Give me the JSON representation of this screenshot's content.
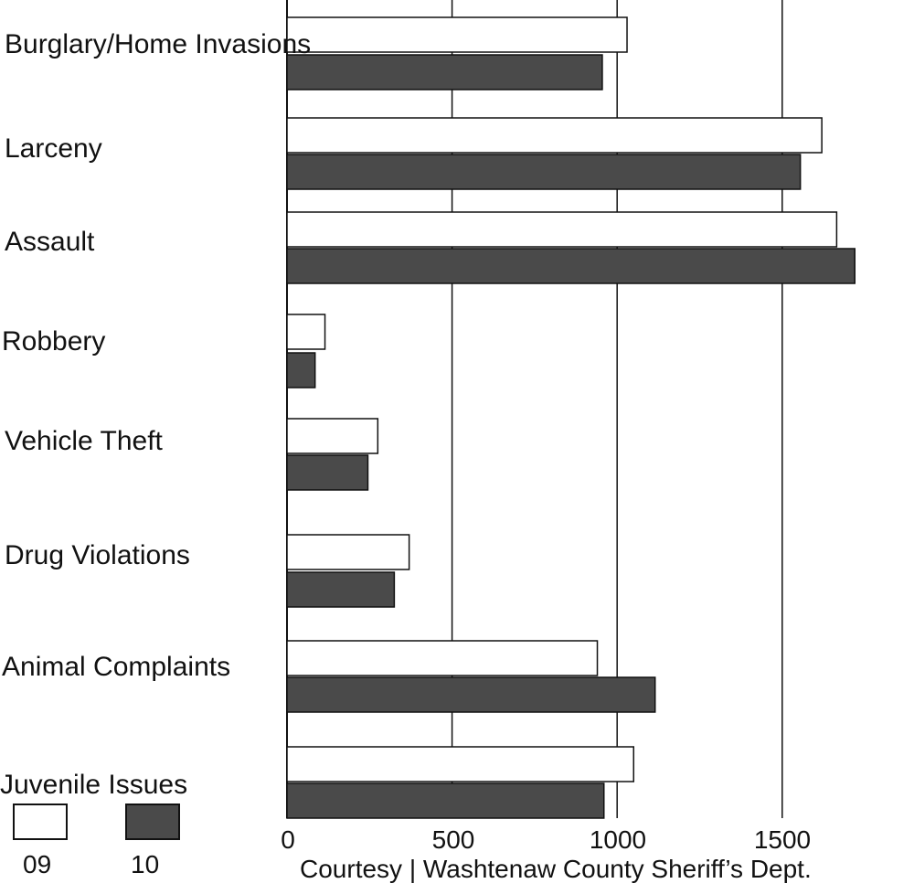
{
  "chart_data": {
    "type": "bar",
    "orientation": "horizontal",
    "categories": [
      "Burglary/Home Invasions",
      "Larceny",
      "Assault",
      "Robbery",
      "Vehicle Theft",
      "Drug Violations",
      "Animal Complaints",
      "Juvenile Issues"
    ],
    "series": [
      {
        "name": "09",
        "color": "#ffffff",
        "values": [
          1030,
          1620,
          1665,
          115,
          275,
          370,
          940,
          1050
        ]
      },
      {
        "name": "10",
        "color": "#4a4a4a",
        "values": [
          955,
          1555,
          1720,
          85,
          245,
          325,
          1115,
          960
        ]
      }
    ],
    "xlim": [
      0,
      1700
    ],
    "xticks": [
      0,
      500,
      1000,
      1500
    ],
    "xtick_labels": [
      "0",
      "500",
      "1000",
      "1500"
    ],
    "grid": "vertical",
    "legend": "bottom-left",
    "credit": "Courtesy | Washtenaw County Sheriff’s Dept."
  }
}
